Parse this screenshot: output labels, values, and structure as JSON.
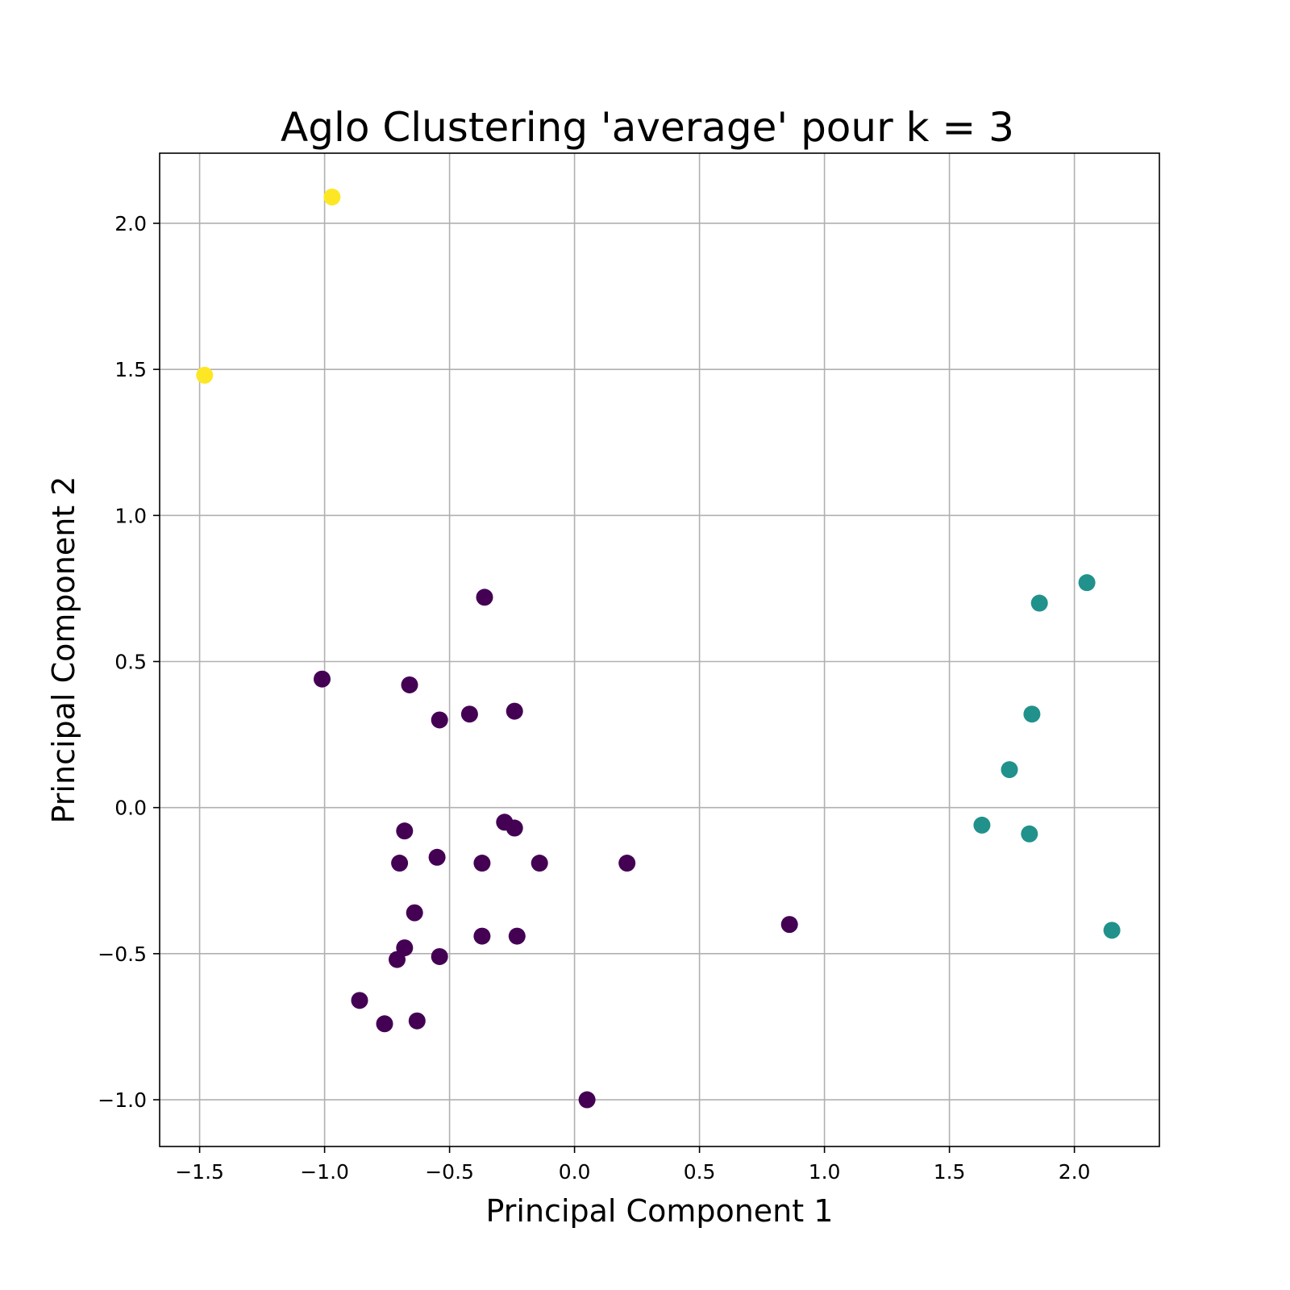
{
  "chart_data": {
    "type": "scatter",
    "title": "Aglo Clustering 'average' pour k = 3",
    "xlabel": "Principal Component 1",
    "ylabel": "Principal Component 2",
    "xlim": [
      -1.66,
      2.34
    ],
    "ylim": [
      -1.16,
      2.24
    ],
    "grid": true,
    "x_ticks": [
      -1.5,
      -1.0,
      -0.5,
      0.0,
      0.5,
      1.0,
      1.5,
      2.0
    ],
    "y_ticks": [
      -1.0,
      -0.5,
      0.0,
      0.5,
      1.0,
      1.5,
      2.0
    ],
    "x_tick_labels": [
      "−1.5",
      "−1.0",
      "−0.5",
      "0.0",
      "0.5",
      "1.0",
      "1.5",
      "2.0"
    ],
    "y_tick_labels": [
      "−1.0",
      "−0.5",
      "0.0",
      "0.5",
      "1.0",
      "1.5",
      "2.0"
    ],
    "cluster_colors": [
      "#440154",
      "#21918c",
      "#fde725"
    ],
    "points": [
      {
        "x": -0.97,
        "y": 2.09,
        "cluster": 2
      },
      {
        "x": -1.48,
        "y": 1.48,
        "cluster": 2
      },
      {
        "x": 2.05,
        "y": 0.77,
        "cluster": 1
      },
      {
        "x": 1.86,
        "y": 0.7,
        "cluster": 1
      },
      {
        "x": 1.83,
        "y": 0.32,
        "cluster": 1
      },
      {
        "x": 1.74,
        "y": 0.13,
        "cluster": 1
      },
      {
        "x": 1.63,
        "y": -0.06,
        "cluster": 1
      },
      {
        "x": 1.82,
        "y": -0.09,
        "cluster": 1
      },
      {
        "x": 2.15,
        "y": -0.42,
        "cluster": 1
      },
      {
        "x": -0.36,
        "y": 0.72,
        "cluster": 0
      },
      {
        "x": -1.01,
        "y": 0.44,
        "cluster": 0
      },
      {
        "x": -0.66,
        "y": 0.42,
        "cluster": 0
      },
      {
        "x": -0.54,
        "y": 0.3,
        "cluster": 0
      },
      {
        "x": -0.42,
        "y": 0.32,
        "cluster": 0
      },
      {
        "x": -0.24,
        "y": 0.33,
        "cluster": 0
      },
      {
        "x": -0.68,
        "y": -0.08,
        "cluster": 0
      },
      {
        "x": -0.28,
        "y": -0.05,
        "cluster": 0
      },
      {
        "x": -0.24,
        "y": -0.07,
        "cluster": 0
      },
      {
        "x": -0.7,
        "y": -0.19,
        "cluster": 0
      },
      {
        "x": -0.55,
        "y": -0.17,
        "cluster": 0
      },
      {
        "x": -0.37,
        "y": -0.19,
        "cluster": 0
      },
      {
        "x": -0.14,
        "y": -0.19,
        "cluster": 0
      },
      {
        "x": 0.21,
        "y": -0.19,
        "cluster": 0
      },
      {
        "x": -0.64,
        "y": -0.36,
        "cluster": 0
      },
      {
        "x": -0.37,
        "y": -0.44,
        "cluster": 0
      },
      {
        "x": -0.23,
        "y": -0.44,
        "cluster": 0
      },
      {
        "x": 0.86,
        "y": -0.4,
        "cluster": 0
      },
      {
        "x": -0.68,
        "y": -0.48,
        "cluster": 0
      },
      {
        "x": -0.71,
        "y": -0.52,
        "cluster": 0
      },
      {
        "x": -0.54,
        "y": -0.51,
        "cluster": 0
      },
      {
        "x": -0.86,
        "y": -0.66,
        "cluster": 0
      },
      {
        "x": -0.76,
        "y": -0.74,
        "cluster": 0
      },
      {
        "x": -0.63,
        "y": -0.73,
        "cluster": 0
      },
      {
        "x": 0.05,
        "y": -1.0,
        "cluster": 0
      }
    ]
  }
}
